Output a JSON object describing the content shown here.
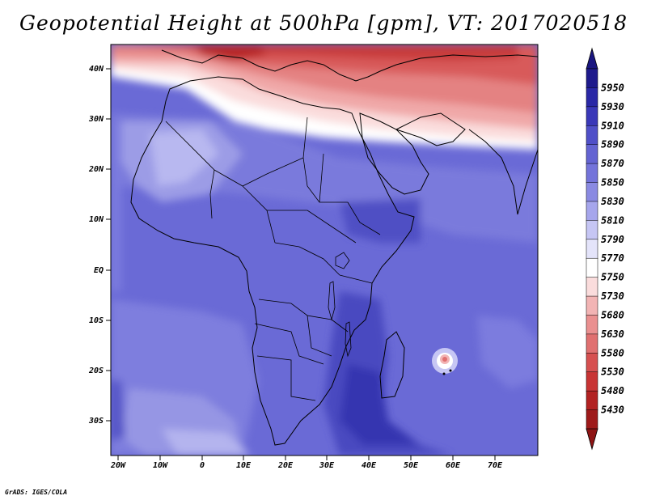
{
  "title": "Geopotential Height at 500hPa [gpm], VT: 2017020518",
  "credit": "GrADS: IGES/COLA",
  "map": {
    "lat_labels": [
      "40N",
      "30N",
      "20N",
      "10N",
      "EQ",
      "10S",
      "20S",
      "30S"
    ],
    "lon_labels": [
      "20W",
      "10W",
      "0",
      "10E",
      "20E",
      "30E",
      "40E",
      "50E",
      "60E",
      "70E"
    ]
  },
  "colorbar": {
    "labels": [
      "5950",
      "5930",
      "5910",
      "5890",
      "5870",
      "5850",
      "5830",
      "5810",
      "5790",
      "5770",
      "5750",
      "5730",
      "5680",
      "5630",
      "5580",
      "5530",
      "5480",
      "5430"
    ],
    "colors": [
      "#1e1a8c",
      "#2a28a6",
      "#3a38b8",
      "#5050c8",
      "#6464d2",
      "#7474da",
      "#8a8ae2",
      "#a6a6ec",
      "#c6c6f4",
      "#e4e4fa",
      "#ffffff",
      "#fadcdc",
      "#f2b4b4",
      "#ea9090",
      "#e07070",
      "#d65050",
      "#c83434",
      "#b22222",
      "#9e1a1a"
    ],
    "top_arrow_color": "#1a1680",
    "bottom_arrow_color": "#8e1414"
  }
}
